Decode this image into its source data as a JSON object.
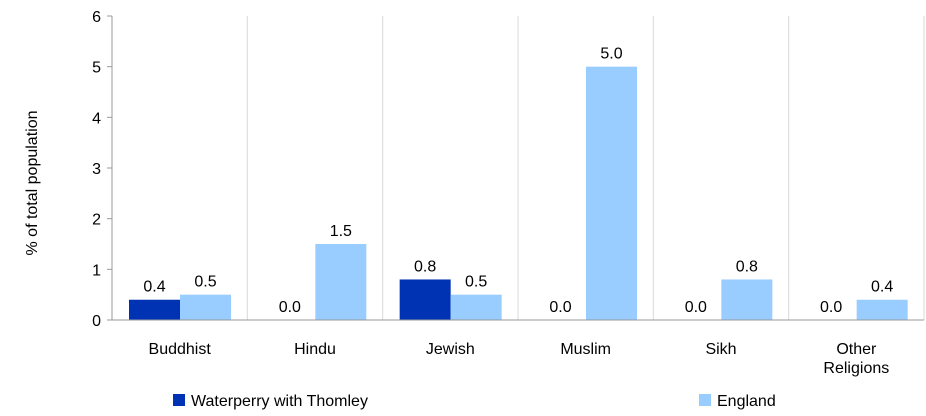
{
  "chart_data": {
    "type": "bar",
    "title": "",
    "xlabel": "",
    "ylabel": "% of total population",
    "ylim": [
      0,
      6
    ],
    "yticks": [
      0,
      1,
      2,
      3,
      4,
      5,
      6
    ],
    "grid": "vertical separators between categories",
    "legend_position": "bottom",
    "categories": [
      [
        "Buddhist"
      ],
      [
        "Hindu"
      ],
      [
        "Jewish"
      ],
      [
        "Muslim"
      ],
      [
        "Sikh"
      ],
      [
        "Other",
        "Religions"
      ]
    ],
    "series": [
      {
        "name": "Waterperry with Thomley",
        "color": "#0033b4",
        "values": [
          0.4,
          0.0,
          0.8,
          0.0,
          0.0,
          0.0
        ],
        "labels": [
          "0.4",
          "0.0",
          "0.8",
          "0.0",
          "0.0",
          "0.0"
        ]
      },
      {
        "name": "England",
        "color": "#99ccff",
        "values": [
          0.5,
          1.5,
          0.5,
          5.0,
          0.8,
          0.4
        ],
        "labels": [
          "0.5",
          "1.5",
          "0.5",
          "5.0",
          "0.8",
          "0.4"
        ]
      }
    ]
  }
}
